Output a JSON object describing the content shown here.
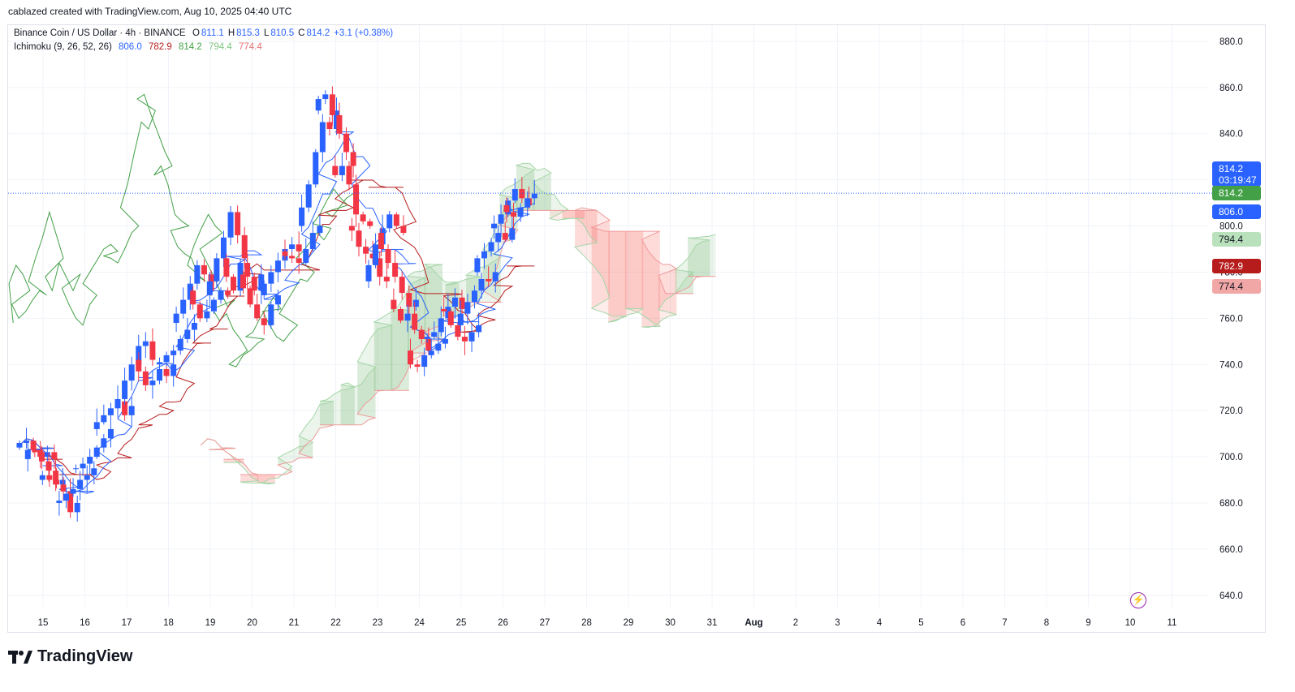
{
  "credit": "cablazed created with TradingView.com, Aug 10, 2025 04:40 UTC",
  "legend": {
    "symbol": "Binance Coin / US Dollar · 4h · BINANCE",
    "o_label": "O",
    "o_value": "811.1",
    "h_label": "H",
    "h_value": "815.3",
    "l_label": "L",
    "l_value": "810.5",
    "c_label": "C",
    "c_value": "814.2",
    "change": "+3.1 (+0.38%)",
    "indicator": "Ichimoku (9, 26, 52, 26)",
    "ind_values": [
      "806.0",
      "782.9",
      "814.2",
      "794.4",
      "774.4"
    ]
  },
  "price_tags": {
    "last": "814.2",
    "countdown": "03:19:47",
    "chikou": "814.2",
    "conversion": "806.0",
    "span_a": "794.4",
    "base": "782.9",
    "span_b": "774.4"
  },
  "brand": "TradingView",
  "colors": {
    "up": "#2962ff",
    "down": "#f23645",
    "conversion": "#2962ff",
    "base": "#b71c1c",
    "lagging": "#43a047",
    "span_a": "#a5d6a7",
    "span_b": "#ef9a9a",
    "cloud_bull": "rgba(67,160,71,0.10)",
    "cloud_bear": "rgba(244,67,54,0.10)"
  },
  "chart_data": {
    "type": "candlestick",
    "title": "Binance Coin / US Dollar · 4h · BINANCE",
    "ylim": [
      635,
      887
    ],
    "y_ticks": [
      640,
      660,
      680,
      700,
      720,
      740,
      760,
      780,
      800,
      820,
      840,
      860,
      880
    ],
    "y_tick_labels": [
      "640.0",
      "660.0",
      "680.0",
      "700.0",
      "720.0",
      "740.0",
      "760.0",
      "780.0",
      "800.0",
      "820.0",
      "840.0",
      "860.0",
      "880.0"
    ],
    "x_labels": [
      "15",
      "16",
      "17",
      "18",
      "19",
      "20",
      "21",
      "22",
      "23",
      "24",
      "25",
      "26",
      "27",
      "28",
      "29",
      "30",
      "31",
      "Aug",
      "2",
      "3",
      "4",
      "5",
      "6",
      "7",
      "8",
      "9",
      "10",
      "11"
    ],
    "last_price": 814.2,
    "day_centers": [
      [
        -0.35,
        706,
        707,
        703,
        700,
        702,
        699
      ],
      [
        -0.15,
        703,
        702,
        698,
        694,
        688,
        690
      ],
      [
        0.2,
        692,
        690,
        688,
        685,
        676,
        680
      ],
      [
        0.6,
        681,
        684,
        686,
        690,
        692,
        695
      ],
      [
        1.0,
        695,
        697,
        700,
        704,
        708,
        712
      ],
      [
        1.5,
        715,
        718,
        721,
        724,
        718,
        722
      ],
      [
        2.0,
        725,
        733,
        740,
        748,
        750,
        742
      ],
      [
        2.5,
        737,
        731,
        733,
        738,
        735,
        740
      ],
      [
        3.0,
        741,
        744,
        746,
        751,
        755,
        758
      ],
      [
        3.4,
        762,
        768,
        775,
        783,
        779,
        772
      ],
      [
        3.8,
        766,
        760,
        763,
        768,
        772,
        770
      ],
      [
        4.2,
        776,
        786,
        795,
        806,
        796,
        786
      ],
      [
        4.6,
        778,
        772,
        784,
        778,
        772,
        779
      ],
      [
        5.0,
        773,
        766,
        760,
        757,
        766,
        770
      ],
      [
        5.5,
        775,
        780,
        785,
        790,
        792,
        789
      ],
      [
        6.0,
        787,
        786,
        784,
        790,
        797,
        800
      ],
      [
        6.4,
        808,
        818,
        832,
        845,
        842,
        850
      ],
      [
        6.8,
        855,
        857,
        848,
        840,
        832,
        826
      ],
      [
        7.2,
        822,
        826,
        818,
        805,
        802,
        800
      ],
      [
        7.6,
        798,
        791,
        788,
        786,
        778,
        776
      ],
      [
        8.0,
        783,
        792,
        799,
        805,
        800,
        797
      ],
      [
        8.3,
        790,
        784,
        778,
        771,
        765,
        768
      ],
      [
        8.6,
        764,
        759,
        762,
        755,
        751,
        746
      ],
      [
        9.0,
        740,
        739,
        744,
        746,
        749,
        751
      ],
      [
        9.4,
        752,
        754,
        760,
        765,
        769,
        764
      ],
      [
        9.8,
        763,
        757,
        752,
        750,
        754,
        757
      ],
      [
        10.2,
        762,
        767,
        772,
        777,
        776,
        780
      ],
      [
        10.6,
        786,
        789,
        793,
        797,
        794,
        799
      ],
      [
        11.0,
        801,
        805,
        811,
        816,
        812,
        809
      ],
      [
        11.3,
        806,
        804,
        808,
        812,
        814
      ]
    ],
    "series": [
      {
        "name": "806.0"
      },
      {
        "name": "782.9"
      },
      {
        "name": "814.2"
      },
      {
        "name": "794.4"
      },
      {
        "name": "774.4"
      }
    ]
  }
}
